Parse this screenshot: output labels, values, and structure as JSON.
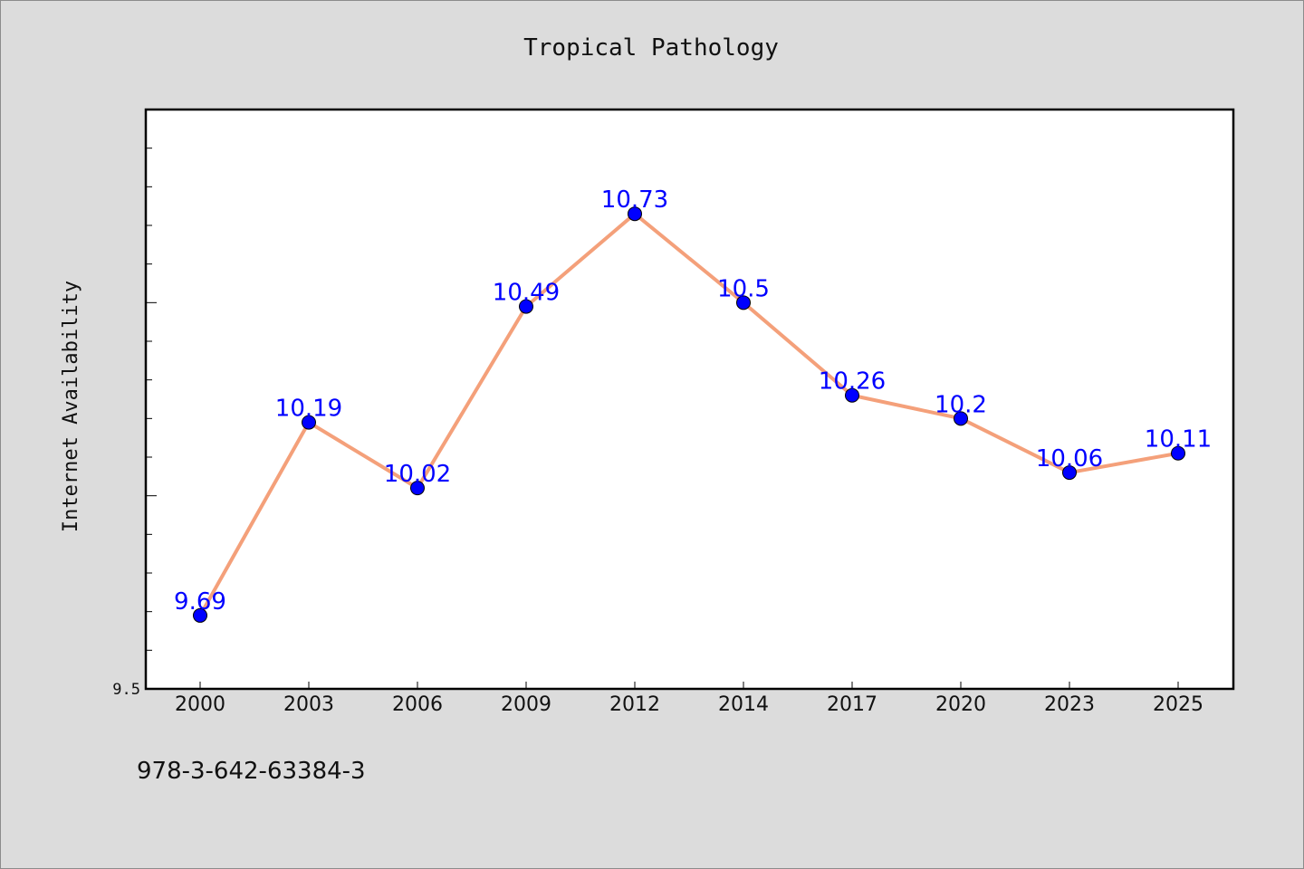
{
  "chart_data": {
    "type": "line",
    "title": "Tropical Pathology",
    "ylabel": "Internet Availability",
    "xlabel": "",
    "categories": [
      "2000",
      "2003",
      "2006",
      "2009",
      "2012",
      "2014",
      "2017",
      "2020",
      "2023",
      "2025"
    ],
    "series": [
      {
        "values": [
          9.69,
          10.19,
          10.02,
          10.49,
          10.73,
          10.5,
          10.26,
          10.2,
          10.06,
          10.11
        ],
        "data_labels": [
          "9.69",
          "10.19",
          "10.02",
          "10.49",
          "10.73",
          "10.5",
          "10.26",
          "10.2",
          "10.06",
          "10.11"
        ]
      }
    ],
    "ylim": [
      9.5,
      11.0
    ],
    "ytick_label": "9.5",
    "grid": false,
    "colors": {
      "line": "#f4a07a",
      "marker": "#0000ff",
      "label": "#0000ff",
      "background": "#dcdcdc",
      "plot_background": "#ffffff"
    }
  },
  "footer": {
    "text": "978-3-642-63384-3"
  }
}
